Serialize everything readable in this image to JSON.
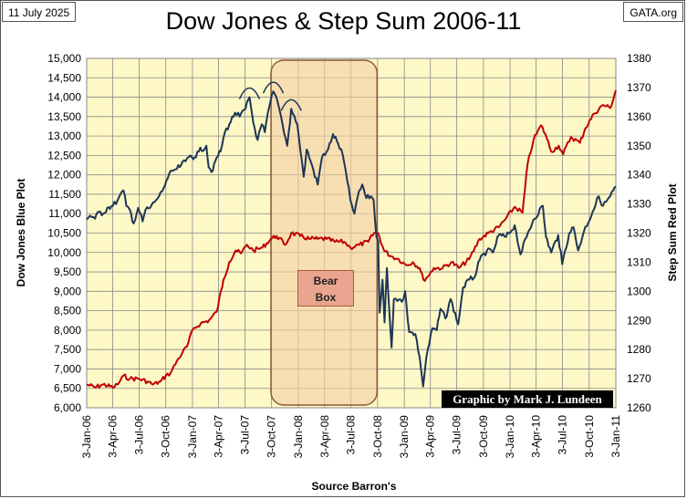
{
  "header": {
    "date": "11 July 2025",
    "site": "GATA.org",
    "title": "Dow Jones & Step Sum 2006-11"
  },
  "annotation": {
    "bear_box_label": [
      "Bear",
      "Box"
    ],
    "credit": "Graphic by Mark J. Lundeen"
  },
  "colors": {
    "background": "#fdf8c6",
    "dow_line": "#1d3557",
    "step_sum_line": "#c00000",
    "bear_box_fill": "#f5cfa3",
    "bear_box_stroke": "#8a5a3c"
  },
  "chart_data": {
    "type": "line",
    "title": "Dow Jones & Step Sum 2006-11",
    "xlabel": "Source Barron's",
    "ylabel_left": "Dow Jones Blue Plot",
    "ylabel_right": "Step Sum Red Plot",
    "ylim_left": [
      6000,
      15000
    ],
    "ylim_right": [
      1260,
      1380
    ],
    "y_ticks_left": [
      "6,000",
      "6,500",
      "7,000",
      "7,500",
      "8,000",
      "8,500",
      "9,000",
      "9,500",
      "10,000",
      "10,500",
      "11,000",
      "11,500",
      "12,000",
      "12,500",
      "13,000",
      "13,500",
      "14,000",
      "14,500",
      "15,000"
    ],
    "y_ticks_right": [
      "1260",
      "1270",
      "1280",
      "1290",
      "1300",
      "1310",
      "1320",
      "1330",
      "1340",
      "1350",
      "1360",
      "1370",
      "1380"
    ],
    "x_ticks": [
      "3-Jan-06",
      "3-Apr-06",
      "3-Jul-06",
      "3-Oct-06",
      "3-Jan-07",
      "3-Apr-07",
      "3-Jul-07",
      "3-Oct-07",
      "3-Jan-08",
      "3-Apr-08",
      "3-Jul-08",
      "3-Oct-08",
      "3-Jan-09",
      "3-Apr-09",
      "3-Jul-09",
      "3-Oct-09",
      "3-Jan-10",
      "3-Apr-10",
      "3-Jul-10",
      "3-Oct-10",
      "3-Jan-11"
    ],
    "grid": true,
    "bear_box": {
      "start": "2007-10-01",
      "end": "2008-10-01"
    },
    "series": [
      {
        "label": "Dow Jones (blue, left axis)",
        "axis": "left",
        "points": [
          [
            "2006-01-03",
            10850
          ],
          [
            "2006-01-15",
            10950
          ],
          [
            "2006-02-01",
            10870
          ],
          [
            "2006-02-15",
            11050
          ],
          [
            "2006-03-01",
            11000
          ],
          [
            "2006-03-15",
            11150
          ],
          [
            "2006-04-03",
            11200
          ],
          [
            "2006-04-20",
            11350
          ],
          [
            "2006-05-10",
            11600
          ],
          [
            "2006-05-20",
            11200
          ],
          [
            "2006-06-01",
            11100
          ],
          [
            "2006-06-14",
            10750
          ],
          [
            "2006-06-30",
            11150
          ],
          [
            "2006-07-15",
            10800
          ],
          [
            "2006-07-25",
            11100
          ],
          [
            "2006-08-10",
            11150
          ],
          [
            "2006-08-25",
            11300
          ],
          [
            "2006-09-10",
            11450
          ],
          [
            "2006-09-25",
            11650
          ],
          [
            "2006-10-05",
            11850
          ],
          [
            "2006-10-25",
            12100
          ],
          [
            "2006-11-10",
            12150
          ],
          [
            "2006-11-25",
            12250
          ],
          [
            "2006-12-10",
            12350
          ],
          [
            "2006-12-27",
            12500
          ],
          [
            "2007-01-10",
            12450
          ],
          [
            "2007-01-25",
            12600
          ],
          [
            "2007-02-20",
            12750
          ],
          [
            "2007-02-28",
            12200
          ],
          [
            "2007-03-14",
            12100
          ],
          [
            "2007-03-28",
            12450
          ],
          [
            "2007-04-10",
            12600
          ],
          [
            "2007-04-25",
            13100
          ],
          [
            "2007-05-10",
            13300
          ],
          [
            "2007-05-30",
            13600
          ],
          [
            "2007-06-15",
            13500
          ],
          [
            "2007-07-05",
            13700
          ],
          [
            "2007-07-19",
            14000
          ],
          [
            "2007-08-01",
            13350
          ],
          [
            "2007-08-16",
            12900
          ],
          [
            "2007-08-30",
            13300
          ],
          [
            "2007-09-10",
            13100
          ],
          [
            "2007-09-25",
            13750
          ],
          [
            "2007-10-09",
            14150
          ],
          [
            "2007-10-25",
            13850
          ],
          [
            "2007-11-10",
            13300
          ],
          [
            "2007-11-26",
            12750
          ],
          [
            "2007-12-10",
            13700
          ],
          [
            "2007-12-31",
            13300
          ],
          [
            "2008-01-10",
            12650
          ],
          [
            "2008-01-22",
            11950
          ],
          [
            "2008-02-01",
            12650
          ],
          [
            "2008-02-15",
            12350
          ],
          [
            "2008-03-10",
            11750
          ],
          [
            "2008-03-25",
            12450
          ],
          [
            "2008-04-10",
            12600
          ],
          [
            "2008-04-25",
            12850
          ],
          [
            "2008-05-02",
            13050
          ],
          [
            "2008-05-20",
            12800
          ],
          [
            "2008-06-05",
            12500
          ],
          [
            "2008-06-20",
            11850
          ],
          [
            "2008-07-01",
            11350
          ],
          [
            "2008-07-15",
            11000
          ],
          [
            "2008-07-25",
            11400
          ],
          [
            "2008-08-11",
            11750
          ],
          [
            "2008-08-25",
            11400
          ],
          [
            "2008-09-10",
            11450
          ],
          [
            "2008-09-19",
            11350
          ],
          [
            "2008-09-29",
            10400
          ],
          [
            "2008-10-05",
            10300
          ],
          [
            "2008-10-10",
            8450
          ],
          [
            "2008-10-20",
            9300
          ],
          [
            "2008-10-27",
            8200
          ],
          [
            "2008-11-04",
            9600
          ],
          [
            "2008-11-20",
            7550
          ],
          [
            "2008-11-28",
            8800
          ],
          [
            "2008-12-10",
            8750
          ],
          [
            "2008-12-31",
            8800
          ],
          [
            "2009-01-06",
            9000
          ],
          [
            "2009-01-20",
            7950
          ],
          [
            "2009-02-10",
            7900
          ],
          [
            "2009-02-25",
            7300
          ],
          [
            "2009-03-09",
            6550
          ],
          [
            "2009-03-20",
            7300
          ],
          [
            "2009-04-10",
            8050
          ],
          [
            "2009-04-25",
            8000
          ],
          [
            "2009-05-08",
            8550
          ],
          [
            "2009-05-25",
            8300
          ],
          [
            "2009-06-12",
            8800
          ],
          [
            "2009-07-08",
            8150
          ],
          [
            "2009-07-25",
            9100
          ],
          [
            "2009-08-15",
            9300
          ],
          [
            "2009-09-01",
            9350
          ],
          [
            "2009-09-20",
            9800
          ],
          [
            "2009-10-15",
            10050
          ],
          [
            "2009-11-05",
            10000
          ],
          [
            "2009-11-25",
            10450
          ],
          [
            "2009-12-20",
            10400
          ],
          [
            "2010-01-19",
            10700
          ],
          [
            "2010-02-08",
            9950
          ],
          [
            "2010-03-01",
            10400
          ],
          [
            "2010-03-25",
            10850
          ],
          [
            "2010-04-26",
            11200
          ],
          [
            "2010-05-07",
            10400
          ],
          [
            "2010-05-25",
            10000
          ],
          [
            "2010-06-18",
            10450
          ],
          [
            "2010-07-02",
            9700
          ],
          [
            "2010-07-26",
            10500
          ],
          [
            "2010-08-10",
            10650
          ],
          [
            "2010-08-26",
            10050
          ],
          [
            "2010-09-15",
            10550
          ],
          [
            "2010-10-15",
            11050
          ],
          [
            "2010-11-05",
            11450
          ],
          [
            "2010-11-20",
            11200
          ],
          [
            "2010-12-15",
            11450
          ],
          [
            "2011-01-03",
            11700
          ]
        ]
      },
      {
        "label": "Step Sum (red, right axis)",
        "axis": "right",
        "points": [
          [
            "2006-01-03",
            1268
          ],
          [
            "2006-02-01",
            1267
          ],
          [
            "2006-03-01",
            1268
          ],
          [
            "2006-04-03",
            1267
          ],
          [
            "2006-04-20",
            1268
          ],
          [
            "2006-05-10",
            1271
          ],
          [
            "2006-06-01",
            1270
          ],
          [
            "2006-07-01",
            1270
          ],
          [
            "2006-08-01",
            1269
          ],
          [
            "2006-08-20",
            1268
          ],
          [
            "2006-09-15",
            1269
          ],
          [
            "2006-10-03",
            1271
          ],
          [
            "2006-10-20",
            1272
          ],
          [
            "2006-11-10",
            1276
          ],
          [
            "2006-11-30",
            1279
          ],
          [
            "2006-12-15",
            1281
          ],
          [
            "2007-01-05",
            1287
          ],
          [
            "2007-02-01",
            1289
          ],
          [
            "2007-03-01",
            1290
          ],
          [
            "2007-03-28",
            1293
          ],
          [
            "2007-04-20",
            1304
          ],
          [
            "2007-05-10",
            1310
          ],
          [
            "2007-06-01",
            1314
          ],
          [
            "2007-06-20",
            1313
          ],
          [
            "2007-07-10",
            1316
          ],
          [
            "2007-08-01",
            1314
          ],
          [
            "2007-09-01",
            1315
          ],
          [
            "2007-10-01",
            1318
          ],
          [
            "2007-10-20",
            1319
          ],
          [
            "2007-11-20",
            1316
          ],
          [
            "2007-12-10",
            1320
          ],
          [
            "2008-01-10",
            1319
          ],
          [
            "2008-02-10",
            1318
          ],
          [
            "2008-03-10",
            1318
          ],
          [
            "2008-04-10",
            1318
          ],
          [
            "2008-05-10",
            1317
          ],
          [
            "2008-06-10",
            1317
          ],
          [
            "2008-07-01",
            1315
          ],
          [
            "2008-08-01",
            1316
          ],
          [
            "2008-09-01",
            1317
          ],
          [
            "2008-09-20",
            1320
          ],
          [
            "2008-10-05",
            1320
          ],
          [
            "2008-10-25",
            1314
          ],
          [
            "2008-11-20",
            1312
          ],
          [
            "2008-12-15",
            1311
          ],
          [
            "2009-01-10",
            1309
          ],
          [
            "2009-02-01",
            1310
          ],
          [
            "2009-02-25",
            1308
          ],
          [
            "2009-03-10",
            1304
          ],
          [
            "2009-03-25",
            1305
          ],
          [
            "2009-04-15",
            1308
          ],
          [
            "2009-05-15",
            1308
          ],
          [
            "2009-06-15",
            1310
          ],
          [
            "2009-07-10",
            1308
          ],
          [
            "2009-08-15",
            1311
          ],
          [
            "2009-09-20",
            1318
          ],
          [
            "2009-10-20",
            1320
          ],
          [
            "2009-11-25",
            1322
          ],
          [
            "2009-12-20",
            1325
          ],
          [
            "2010-01-19",
            1329
          ],
          [
            "2010-02-15",
            1327
          ],
          [
            "2010-03-05",
            1344
          ],
          [
            "2010-03-25",
            1352
          ],
          [
            "2010-04-20",
            1357
          ],
          [
            "2010-05-05",
            1354
          ],
          [
            "2010-05-25",
            1348
          ],
          [
            "2010-06-20",
            1350
          ],
          [
            "2010-07-05",
            1347
          ],
          [
            "2010-08-01",
            1353
          ],
          [
            "2010-09-01",
            1351
          ],
          [
            "2010-09-20",
            1356
          ],
          [
            "2010-10-20",
            1361
          ],
          [
            "2010-11-20",
            1364
          ],
          [
            "2010-12-15",
            1363
          ],
          [
            "2011-01-03",
            1369
          ]
        ]
      }
    ]
  }
}
